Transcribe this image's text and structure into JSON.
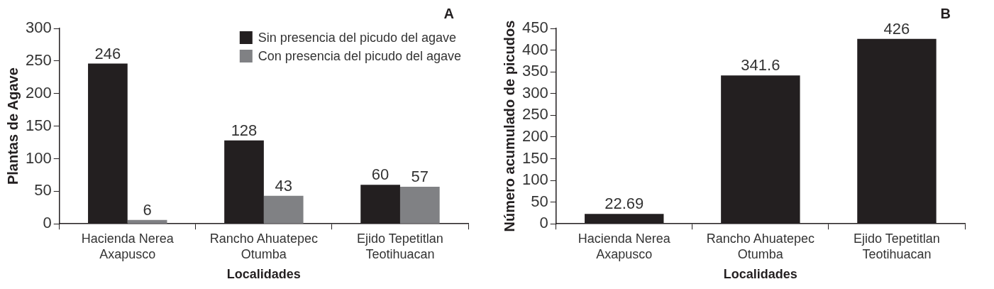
{
  "chart_data": [
    {
      "type": "bar",
      "annotations": [
        "A"
      ],
      "xlabel": "Localidades",
      "ylabel": "Plantas de Agave",
      "categories": [
        "Hacienda Nerea\nAxapusco",
        "Rancho Ahuatepec\nOtumba",
        "Ejido Tepetitlan\nTeotihuacan"
      ],
      "series": [
        {
          "name": "Sin presencia del picudo del agave",
          "color": "#231f20",
          "values": [
            246,
            128,
            60
          ]
        },
        {
          "name": "Con presencia del picudo del agave",
          "color": "#808184",
          "values": [
            6,
            43,
            57
          ]
        }
      ],
      "ylim": [
        0,
        300
      ],
      "yticks": [
        0,
        50,
        100,
        150,
        200,
        250,
        300
      ],
      "grid": false,
      "legend": "top right",
      "data_labels": true
    },
    {
      "type": "bar",
      "annotations": [
        "B"
      ],
      "xlabel": "Localidades",
      "ylabel": "Número acumulado de picudos",
      "categories": [
        "Hacienda Nerea\nAxapusco",
        "Rancho Ahuatepec\nOtumba",
        "Ejido Tepetitlan\nTeotihuacan"
      ],
      "values": [
        22.69,
        341.6,
        426
      ],
      "color": "#231f20",
      "ylim": [
        0,
        450
      ],
      "yticks": [
        0,
        50,
        100,
        150,
        200,
        250,
        300,
        350,
        400,
        450
      ],
      "grid": false,
      "data_labels": true
    }
  ]
}
